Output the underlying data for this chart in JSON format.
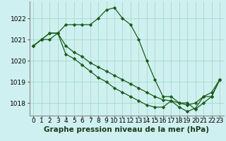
{
  "background_color": "#cff0f0",
  "grid_color": "#aaddcc",
  "line_color": "#1a5c1a",
  "marker_color": "#1a5c1a",
  "xlabel": "Graphe pression niveau de la mer (hPa)",
  "xlabel_fontsize": 7.5,
  "tick_fontsize": 6.5,
  "xlim": [
    -0.5,
    23.5
  ],
  "ylim": [
    1017.4,
    1022.8
  ],
  "yticks": [
    1018,
    1019,
    1020,
    1021,
    1022
  ],
  "xticks": [
    0,
    1,
    2,
    3,
    4,
    5,
    6,
    7,
    8,
    9,
    10,
    11,
    12,
    13,
    14,
    15,
    16,
    17,
    18,
    19,
    20,
    21,
    22,
    23
  ],
  "series1": [
    1020.7,
    1021.0,
    1021.0,
    1021.3,
    1021.7,
    1021.7,
    1021.7,
    1021.7,
    1022.0,
    1022.4,
    1022.5,
    1022.0,
    1021.7,
    1021.0,
    1020.0,
    1019.1,
    1018.3,
    1018.3,
    1018.0,
    1018.0,
    1017.7,
    1018.0,
    1018.3,
    1019.1
  ],
  "series2": [
    1020.7,
    1021.0,
    1021.3,
    1021.3,
    1020.7,
    1020.4,
    1020.2,
    1019.9,
    1019.7,
    1019.5,
    1019.3,
    1019.1,
    1018.9,
    1018.7,
    1018.5,
    1018.3,
    1018.15,
    1018.1,
    1018.0,
    1017.9,
    1018.0,
    1018.3,
    1018.5,
    1019.1
  ],
  "series3": [
    1020.7,
    1021.0,
    1021.3,
    1021.3,
    1020.3,
    1020.1,
    1019.8,
    1019.5,
    1019.2,
    1019.0,
    1018.7,
    1018.5,
    1018.3,
    1018.1,
    1017.9,
    1017.8,
    1017.8,
    1018.1,
    1017.8,
    1017.6,
    1017.75,
    1018.3,
    1018.3,
    1019.1
  ]
}
